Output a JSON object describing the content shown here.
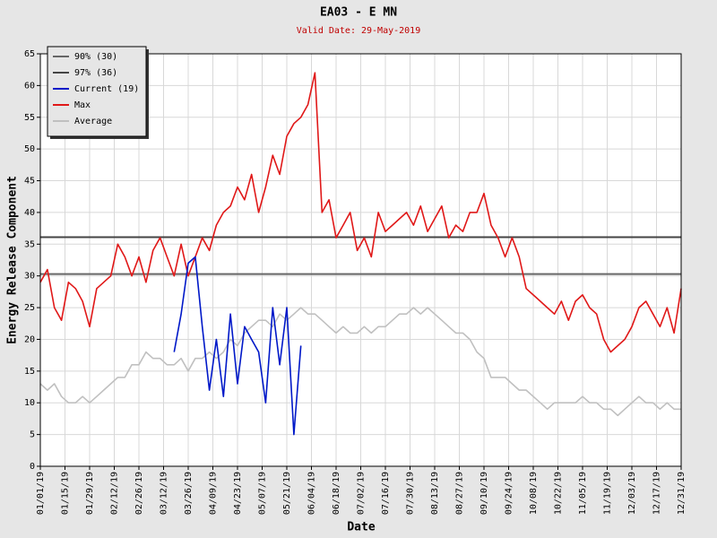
{
  "chart_data": {
    "type": "line",
    "title": "EA03 - E MN",
    "subtitle": "Valid Date: 29-May-2019",
    "x_label": "Date",
    "y_label": "Energy Release Component",
    "x": [
      0,
      4,
      8,
      12,
      16,
      20,
      24,
      28,
      32,
      36,
      40,
      44,
      48,
      52,
      56,
      60,
      64,
      68,
      72,
      76,
      80,
      84,
      88,
      92,
      96,
      100,
      104,
      108,
      112,
      116,
      120,
      124,
      128,
      132,
      136,
      140,
      144,
      148,
      152,
      156,
      160,
      164,
      168,
      172,
      176,
      180,
      184,
      188,
      192,
      196,
      200,
      204,
      208,
      212,
      216,
      220,
      224,
      228,
      232,
      236,
      240,
      244,
      248,
      252,
      256,
      260,
      264,
      268,
      272,
      276,
      280,
      284,
      288,
      292,
      296,
      300,
      304,
      308,
      312,
      316,
      320,
      324,
      328,
      332,
      336,
      340,
      344,
      348,
      352,
      356,
      360,
      364
    ],
    "reference_lines": [
      {
        "name": "90% (30)",
        "value": 30.3,
        "color": "#666666"
      },
      {
        "name": "97% (36)",
        "value": 36.1,
        "color": "#444444"
      }
    ],
    "series": [
      {
        "name": "Current (19)",
        "color": "#0018c8",
        "values": [
          null,
          null,
          null,
          null,
          null,
          null,
          null,
          null,
          null,
          null,
          null,
          null,
          null,
          null,
          null,
          null,
          null,
          null,
          null,
          18,
          24,
          32,
          33,
          22,
          12,
          20,
          11,
          24,
          13,
          22,
          20,
          18,
          10,
          25,
          16,
          25,
          5,
          19,
          null,
          null,
          null,
          null,
          null,
          null,
          null,
          null,
          null,
          null,
          null,
          null,
          null,
          null,
          null,
          null,
          null,
          null,
          null,
          null,
          null,
          null,
          null,
          null,
          null,
          null,
          null,
          null,
          null,
          null,
          null,
          null,
          null,
          null,
          null,
          null,
          null,
          null,
          null,
          null,
          null,
          null,
          null,
          null,
          null,
          null,
          null,
          null,
          null,
          null,
          null,
          null,
          null,
          null
        ]
      },
      {
        "name": "Max",
        "color": "#e01818",
        "values": [
          29,
          31,
          25,
          23,
          29,
          28,
          26,
          22,
          28,
          29,
          30,
          35,
          33,
          30,
          33,
          29,
          34,
          36,
          33,
          30,
          35,
          30,
          33,
          36,
          34,
          38,
          40,
          41,
          44,
          42,
          46,
          40,
          44,
          49,
          46,
          52,
          54,
          55,
          57,
          62,
          40,
          42,
          36,
          38,
          40,
          34,
          36,
          33,
          40,
          37,
          38,
          39,
          40,
          38,
          41,
          37,
          39,
          41,
          36,
          38,
          37,
          40,
          40,
          43,
          38,
          36,
          33,
          36,
          33,
          28,
          27,
          26,
          25,
          24,
          26,
          23,
          26,
          27,
          25,
          24,
          20,
          18,
          19,
          20,
          22,
          25,
          26,
          24,
          22,
          25,
          21,
          28
        ]
      },
      {
        "name": "Average",
        "color": "#c0c0c0",
        "values": [
          13,
          12,
          13,
          11,
          10,
          10,
          11,
          10,
          11,
          12,
          13,
          14,
          14,
          16,
          16,
          18,
          17,
          17,
          16,
          16,
          17,
          15,
          17,
          17,
          18,
          17,
          18,
          20,
          19,
          21,
          22,
          23,
          23,
          22,
          24,
          23,
          24,
          25,
          24,
          24,
          23,
          22,
          21,
          22,
          21,
          21,
          22,
          21,
          22,
          22,
          23,
          24,
          24,
          25,
          24,
          25,
          24,
          23,
          22,
          21,
          21,
          20,
          18,
          17,
          14,
          14,
          14,
          13,
          12,
          12,
          11,
          10,
          9,
          10,
          10,
          10,
          10,
          11,
          10,
          10,
          9,
          9,
          8,
          9,
          10,
          11,
          10,
          10,
          9,
          10,
          9,
          9
        ]
      }
    ],
    "xlim": [
      0,
      364
    ],
    "xticks": [
      {
        "value": 0,
        "label": "01/01/19"
      },
      {
        "value": 14,
        "label": "01/15/19"
      },
      {
        "value": 28,
        "label": "01/29/19"
      },
      {
        "value": 42,
        "label": "02/12/19"
      },
      {
        "value": 56,
        "label": "02/26/19"
      },
      {
        "value": 70,
        "label": "03/12/19"
      },
      {
        "value": 84,
        "label": "03/26/19"
      },
      {
        "value": 98,
        "label": "04/09/19"
      },
      {
        "value": 112,
        "label": "04/23/19"
      },
      {
        "value": 126,
        "label": "05/07/19"
      },
      {
        "value": 140,
        "label": "05/21/19"
      },
      {
        "value": 154,
        "label": "06/04/19"
      },
      {
        "value": 168,
        "label": "06/18/19"
      },
      {
        "value": 182,
        "label": "07/02/19"
      },
      {
        "value": 196,
        "label": "07/16/19"
      },
      {
        "value": 210,
        "label": "07/30/19"
      },
      {
        "value": 224,
        "label": "08/13/19"
      },
      {
        "value": 238,
        "label": "08/27/19"
      },
      {
        "value": 252,
        "label": "09/10/19"
      },
      {
        "value": 266,
        "label": "09/24/19"
      },
      {
        "value": 280,
        "label": "10/08/19"
      },
      {
        "value": 294,
        "label": "10/22/19"
      },
      {
        "value": 308,
        "label": "11/05/19"
      },
      {
        "value": 322,
        "label": "11/19/19"
      },
      {
        "value": 336,
        "label": "12/03/19"
      },
      {
        "value": 350,
        "label": "12/17/19"
      },
      {
        "value": 364,
        "label": "12/31/19"
      }
    ],
    "ylim": [
      0,
      65
    ],
    "yticks": [
      0,
      5,
      10,
      15,
      20,
      25,
      30,
      35,
      40,
      45,
      50,
      55,
      60,
      65
    ],
    "grid": true,
    "legend": "top-left"
  }
}
